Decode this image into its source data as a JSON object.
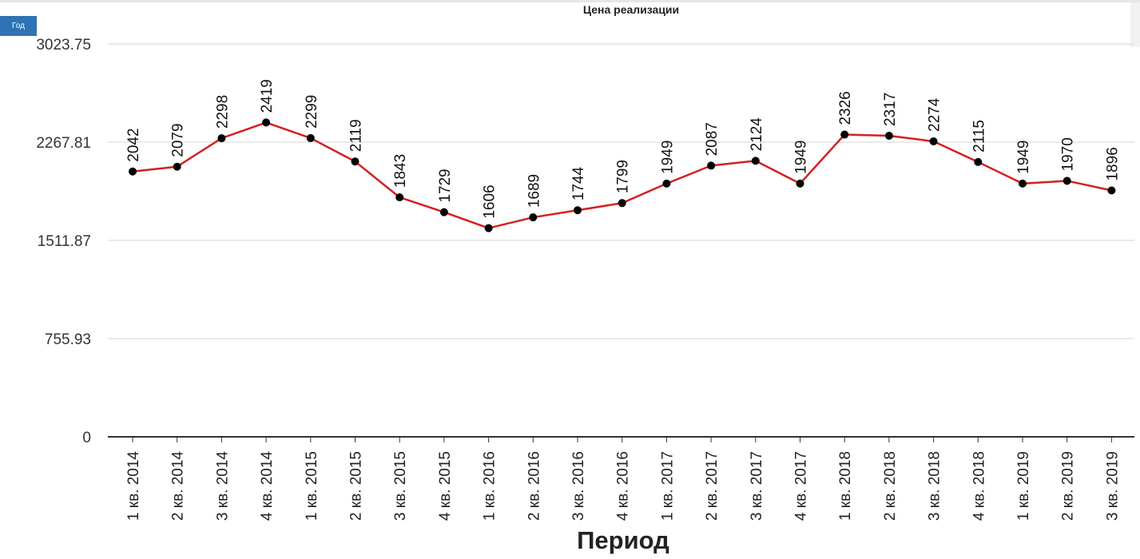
{
  "controls": {
    "period_button": "Год"
  },
  "colors": {
    "line": "#d42020",
    "marker": "#000000",
    "grid": "#d6d6d6",
    "axis": "#333333",
    "button": "#2e74b5"
  },
  "chart_data": {
    "type": "line",
    "title": "Цена реализации",
    "xlabel": "Период",
    "ylabel": "",
    "ylim": [
      0,
      3023.75
    ],
    "yticks": [
      "0",
      "755.93",
      "1511.87",
      "2267.81",
      "3023.75"
    ],
    "ytick_values": [
      0,
      755.93,
      1511.87,
      2267.81,
      3023.75
    ],
    "grid": true,
    "legend": "none",
    "categories": [
      "1 кв. 2014",
      "2 кв. 2014",
      "3 кв. 2014",
      "4 кв. 2014",
      "1 кв. 2015",
      "2 кв. 2015",
      "3 кв. 2015",
      "4 кв. 2015",
      "1 кв. 2016",
      "2 кв. 2016",
      "3 кв. 2016",
      "4 кв. 2016",
      "1 кв. 2017",
      "2 кв. 2017",
      "3 кв. 2017",
      "4 кв. 2017",
      "1 кв. 2018",
      "2 кв. 2018",
      "3 кв. 2018",
      "4 кв. 2018",
      "1 кв. 2019",
      "2 кв. 2019",
      "3 кв. 2019"
    ],
    "series": [
      {
        "values": [
          2042,
          2079,
          2298,
          2419,
          2299,
          2119,
          1843,
          1729,
          1606,
          1689,
          1744,
          1799,
          1949,
          2087,
          2124,
          1949,
          2326,
          2317,
          2274,
          2115,
          1949,
          1970,
          1896
        ]
      }
    ]
  }
}
